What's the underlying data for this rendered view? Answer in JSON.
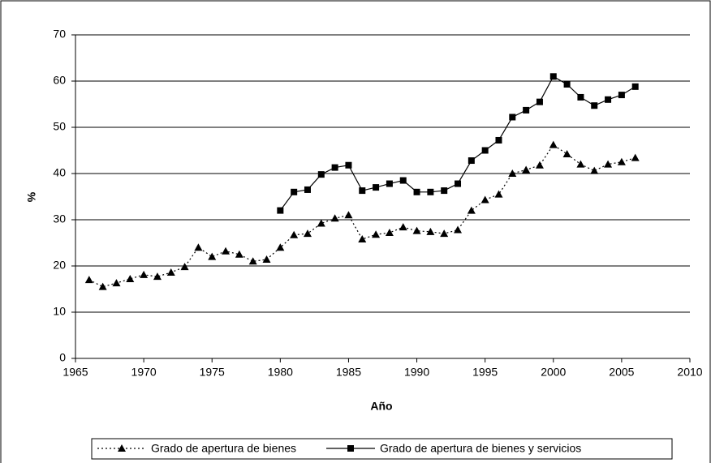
{
  "chart_data": {
    "type": "line",
    "xlabel": "Año",
    "ylabel": "%",
    "x": [
      1966,
      1967,
      1968,
      1969,
      1970,
      1971,
      1972,
      1973,
      1974,
      1975,
      1976,
      1977,
      1978,
      1979,
      1980,
      1981,
      1982,
      1983,
      1984,
      1985,
      1986,
      1987,
      1988,
      1989,
      1990,
      1991,
      1992,
      1993,
      1994,
      1995,
      1996,
      1997,
      1998,
      1999,
      2000,
      2001,
      2002,
      2003,
      2004,
      2005,
      2006
    ],
    "series": [
      {
        "name": "Grado de apertura de bienes",
        "color": "#000000",
        "line_style": "dotted",
        "marker": "triangle",
        "values": [
          17,
          15.5,
          16.3,
          17.2,
          18.1,
          17.7,
          18.6,
          19.8,
          24,
          22,
          23.2,
          22.5,
          21,
          21.4,
          24,
          26.7,
          27,
          29.2,
          30.3,
          31,
          25.8,
          26.8,
          27.2,
          28.4,
          27.6,
          27.4,
          27,
          27.8,
          32,
          34.3,
          35.5,
          40,
          40.8,
          41.8,
          46.2,
          44.2,
          42,
          40.6,
          42,
          42.5,
          43.4
        ]
      },
      {
        "name": "Grado de apertura de bienes y servicios",
        "color": "#000000",
        "line_style": "solid",
        "marker": "square",
        "values": [
          null,
          null,
          null,
          null,
          null,
          null,
          null,
          null,
          null,
          null,
          null,
          null,
          null,
          null,
          32,
          36,
          36.5,
          39.8,
          41.3,
          41.8,
          36.3,
          37,
          37.8,
          38.5,
          36,
          36,
          36.3,
          37.8,
          42.8,
          45,
          47.2,
          52.2,
          53.7,
          55.5,
          61,
          59.3,
          56.5,
          54.7,
          56,
          57,
          58.8
        ]
      }
    ],
    "xlim": [
      1965,
      2010
    ],
    "xticks": [
      1965,
      1970,
      1975,
      1980,
      1985,
      1990,
      1995,
      2000,
      2005,
      2010
    ],
    "ylim": [
      0,
      70
    ],
    "yticks": [
      0,
      10,
      20,
      30,
      40,
      50,
      60,
      70
    ],
    "grid": true,
    "legend": "bottom"
  }
}
